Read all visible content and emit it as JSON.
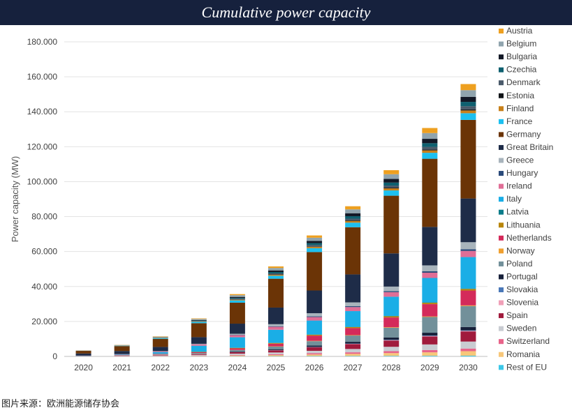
{
  "header": {
    "title": "Cumulative power capacity"
  },
  "footer": {
    "source": "图片来源：欧洲能源储存协会"
  },
  "chart_data": {
    "type": "bar",
    "stacked": true,
    "title": "Cumulative power capacity",
    "xlabel": "",
    "ylabel": "Power capacity (MW)",
    "ylim": [
      0,
      180000
    ],
    "yticks": [
      0,
      20000,
      40000,
      60000,
      80000,
      100000,
      120000,
      140000,
      160000,
      180000
    ],
    "ytick_labels": [
      "0",
      "20.000",
      "40.000",
      "60.000",
      "80.000",
      "100.000",
      "120.000",
      "140.000",
      "160.000",
      "180.000"
    ],
    "grid": true,
    "legend_position": "right",
    "categories": [
      "2020",
      "2021",
      "2022",
      "2023",
      "2024",
      "2025",
      "2026",
      "2027",
      "2028",
      "2029",
      "2030"
    ],
    "series": [
      {
        "name": "Rest of EU",
        "color": "#3cc8e8",
        "values": [
          30,
          50,
          80,
          100,
          130,
          160,
          200,
          250,
          300,
          350,
          400
        ]
      },
      {
        "name": "Romania",
        "color": "#f7c77a",
        "values": [
          20,
          50,
          100,
          200,
          400,
          600,
          900,
          1200,
          1600,
          2000,
          2600
        ]
      },
      {
        "name": "Switzerland",
        "color": "#e8648a",
        "values": [
          40,
          100,
          150,
          200,
          350,
          500,
          700,
          900,
          1100,
          1300,
          1500
        ]
      },
      {
        "name": "Sweden",
        "color": "#c9ccd2",
        "values": [
          20,
          80,
          200,
          400,
          700,
          1000,
          1400,
          1900,
          2500,
          3200,
          4000
        ]
      },
      {
        "name": "Spain",
        "color": "#a01a3c",
        "values": [
          30,
          100,
          250,
          400,
          800,
          1200,
          2000,
          2800,
          3600,
          4600,
          5800
        ]
      },
      {
        "name": "Slovenia",
        "color": "#f0a0b8",
        "values": [
          5,
          10,
          20,
          40,
          60,
          80,
          100,
          150,
          200,
          250,
          300
        ]
      },
      {
        "name": "Slovakia",
        "color": "#4a78b8",
        "values": [
          5,
          10,
          20,
          40,
          60,
          90,
          120,
          150,
          200,
          250,
          300
        ]
      },
      {
        "name": "Portugal",
        "color": "#17203a",
        "values": [
          10,
          30,
          60,
          150,
          300,
          500,
          800,
          1000,
          1300,
          1600,
          1900
        ]
      },
      {
        "name": "Poland",
        "color": "#72909a",
        "values": [
          40,
          100,
          200,
          400,
          800,
          1500,
          2500,
          3600,
          5600,
          9000,
          12000
        ]
      },
      {
        "name": "Norway",
        "color": "#f0a030",
        "values": [
          10,
          20,
          40,
          60,
          100,
          150,
          200,
          250,
          300,
          350,
          400
        ]
      },
      {
        "name": "Netherlands",
        "color": "#d42a5a",
        "values": [
          50,
          150,
          250,
          400,
          900,
          1500,
          3000,
          4000,
          5600,
          7000,
          8500
        ]
      },
      {
        "name": "Lithuania",
        "color": "#b8860b",
        "values": [
          10,
          50,
          100,
          200,
          300,
          400,
          500,
          600,
          700,
          800,
          900
        ]
      },
      {
        "name": "Latvia",
        "color": "#0a7c8a",
        "values": [
          5,
          10,
          20,
          30,
          50,
          70,
          100,
          130,
          160,
          200,
          250
        ]
      },
      {
        "name": "Italy",
        "color": "#1aaee6",
        "values": [
          100,
          300,
          1000,
          3500,
          6000,
          7500,
          8000,
          9000,
          11000,
          14000,
          18000
        ]
      },
      {
        "name": "Ireland",
        "color": "#e06e96",
        "values": [
          80,
          200,
          400,
          800,
          1200,
          1700,
          2000,
          2300,
          2600,
          3000,
          3500
        ]
      },
      {
        "name": "Hungary",
        "color": "#2a4a7a",
        "values": [
          10,
          30,
          60,
          100,
          200,
          300,
          400,
          500,
          600,
          800,
          1000
        ]
      },
      {
        "name": "Greece",
        "color": "#a8b4bc",
        "values": [
          10,
          30,
          80,
          200,
          600,
          1200,
          1800,
          2200,
          2600,
          3400,
          4000
        ]
      },
      {
        "name": "Great Britain",
        "color": "#1e2c48",
        "values": [
          1200,
          1800,
          2400,
          3800,
          5800,
          9500,
          13000,
          16000,
          19000,
          22000,
          25000
        ]
      },
      {
        "name": "Germany",
        "color": "#6b3406",
        "values": [
          1500,
          2800,
          4600,
          8000,
          12000,
          16500,
          22000,
          27000,
          33000,
          39000,
          45000
        ]
      },
      {
        "name": "France",
        "color": "#1cc0f0",
        "values": [
          50,
          200,
          400,
          800,
          1300,
          1700,
          2200,
          2600,
          3000,
          3400,
          3800
        ]
      },
      {
        "name": "Finland",
        "color": "#c8801a",
        "values": [
          30,
          80,
          150,
          250,
          400,
          600,
          800,
          1000,
          1200,
          1400,
          1600
        ]
      },
      {
        "name": "Estonia",
        "color": "#101418",
        "values": [
          5,
          10,
          30,
          60,
          100,
          150,
          200,
          300,
          400,
          500,
          600
        ]
      },
      {
        "name": "Denmark",
        "color": "#4a5a6a",
        "values": [
          20,
          50,
          100,
          200,
          400,
          600,
          800,
          1000,
          1200,
          1500,
          1800
        ]
      },
      {
        "name": "Czechia",
        "color": "#0e6070",
        "values": [
          10,
          30,
          80,
          200,
          500,
          800,
          1100,
          1400,
          1700,
          2100,
          2500
        ]
      },
      {
        "name": "Bulgaria",
        "color": "#121826",
        "values": [
          10,
          30,
          100,
          300,
          600,
          900,
          1300,
          1700,
          2100,
          2500,
          2900
        ]
      },
      {
        "name": "Belgium",
        "color": "#90a4ae",
        "values": [
          100,
          200,
          400,
          600,
          1000,
          1400,
          1800,
          2200,
          2700,
          3300,
          3800
        ]
      },
      {
        "name": "Austria",
        "color": "#eea020",
        "values": [
          50,
          100,
          200,
          300,
          600,
          900,
          1300,
          1800,
          2300,
          2900,
          3500
        ]
      }
    ]
  }
}
